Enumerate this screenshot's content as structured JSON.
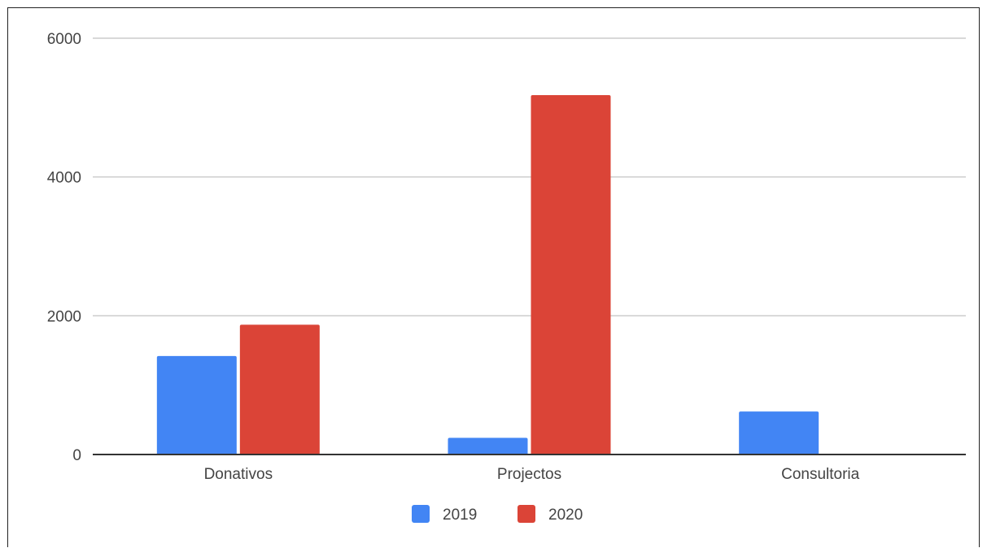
{
  "chart_data": {
    "type": "bar",
    "categories": [
      "Donativos",
      "Projectos",
      "Consultoria"
    ],
    "series": [
      {
        "name": "2019",
        "values": [
          1420,
          240,
          620
        ],
        "color": "#4285F4"
      },
      {
        "name": "2020",
        "values": [
          1870,
          5180,
          0
        ],
        "color": "#DB4437"
      }
    ],
    "yticks": [
      "0",
      "2000",
      "4000",
      "6000"
    ],
    "ylim": [
      0,
      6000
    ],
    "grid": true,
    "legend_position": "bottom"
  }
}
